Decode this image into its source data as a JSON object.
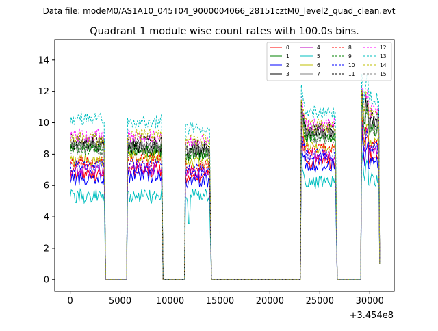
{
  "chart_data": {
    "type": "line",
    "suptitle": "Data file: modeM0/AS1A10_045T04_9000004066_28151cztM0_level2_quad_clean.evt",
    "title": "Quadrant 1 module wise count rates with 100.0s bins.",
    "xlabel": "",
    "ylabel": "",
    "x_offset_label": "+3.454e8",
    "xlim": [
      -1550,
      32450
    ],
    "ylim": [
      -0.75,
      15.3
    ],
    "xticks": [
      0,
      5000,
      10000,
      15000,
      20000,
      25000,
      30000
    ],
    "xtick_labels": [
      "0",
      "5000",
      "10000",
      "15000",
      "20000",
      "25000",
      "30000"
    ],
    "yticks": [
      0,
      2,
      4,
      6,
      8,
      10,
      12,
      14
    ],
    "ytick_labels": [
      "0",
      "2",
      "4",
      "6",
      "8",
      "10",
      "12",
      "14"
    ],
    "grid": false,
    "legend_position": "top-right",
    "segments": [
      {
        "start": 0,
        "end": 3400,
        "drop": 3550
      },
      {
        "start": 5750,
        "end": 9150,
        "drop": 9300
      },
      {
        "start": 11550,
        "end": 14000,
        "drop": 14150
      },
      {
        "start": 23150,
        "end": 26600,
        "drop": 26750
      },
      {
        "start": 29200,
        "end": 30950,
        "drop": 31000
      }
    ],
    "gap_value": 0,
    "series": [
      {
        "name": "0",
        "color": "#ff0000",
        "dashed": false,
        "levels": [
          6.7,
          7.0,
          6.6,
          7.5,
          7.8
        ]
      },
      {
        "name": "1",
        "color": "#008000",
        "dashed": false,
        "levels": [
          8.5,
          8.2,
          8.0,
          9.2,
          9.6
        ]
      },
      {
        "name": "2",
        "color": "#0000ff",
        "dashed": false,
        "levels": [
          6.4,
          6.6,
          6.3,
          7.3,
          7.5
        ]
      },
      {
        "name": "3",
        "color": "#000000",
        "dashed": false,
        "levels": [
          8.6,
          8.4,
          8.2,
          9.4,
          10.2
        ]
      },
      {
        "name": "4",
        "color": "#bf00bf",
        "dashed": false,
        "levels": [
          7.0,
          7.1,
          6.8,
          7.9,
          8.3
        ]
      },
      {
        "name": "5",
        "color": "#00bfbf",
        "dashed": false,
        "levels": [
          5.3,
          5.3,
          5.4,
          6.2,
          6.4
        ]
      },
      {
        "name": "6",
        "color": "#bfbf00",
        "dashed": false,
        "levels": [
          7.6,
          7.9,
          7.5,
          8.5,
          8.9
        ]
      },
      {
        "name": "7",
        "color": "#808080",
        "dashed": false,
        "levels": [
          8.7,
          8.6,
          8.4,
          9.5,
          10.0
        ]
      },
      {
        "name": "8",
        "color": "#ff0000",
        "dashed": true,
        "levels": [
          7.4,
          7.6,
          7.2,
          8.3,
          8.7
        ]
      },
      {
        "name": "9",
        "color": "#008000",
        "dashed": true,
        "levels": [
          8.4,
          8.3,
          8.0,
          9.1,
          9.7
        ]
      },
      {
        "name": "10",
        "color": "#0000ff",
        "dashed": true,
        "levels": [
          7.2,
          7.3,
          7.0,
          7.9,
          8.4
        ]
      },
      {
        "name": "11",
        "color": "#000000",
        "dashed": true,
        "levels": [
          8.9,
          8.8,
          8.5,
          9.6,
          10.6
        ]
      },
      {
        "name": "12",
        "color": "#ff00ff",
        "dashed": true,
        "levels": [
          9.2,
          9.1,
          8.8,
          9.9,
          10.8
        ]
      },
      {
        "name": "13",
        "color": "#00bfbf",
        "dashed": true,
        "levels": [
          10.3,
          10.1,
          9.7,
          10.7,
          11.6
        ]
      },
      {
        "name": "14",
        "color": "#bfbf00",
        "dashed": true,
        "levels": [
          9.0,
          9.2,
          8.9,
          9.8,
          10.6
        ]
      },
      {
        "name": "15",
        "color": "#808080",
        "dashed": true,
        "levels": [
          8.3,
          8.4,
          8.1,
          9.1,
          9.6
        ]
      }
    ]
  }
}
